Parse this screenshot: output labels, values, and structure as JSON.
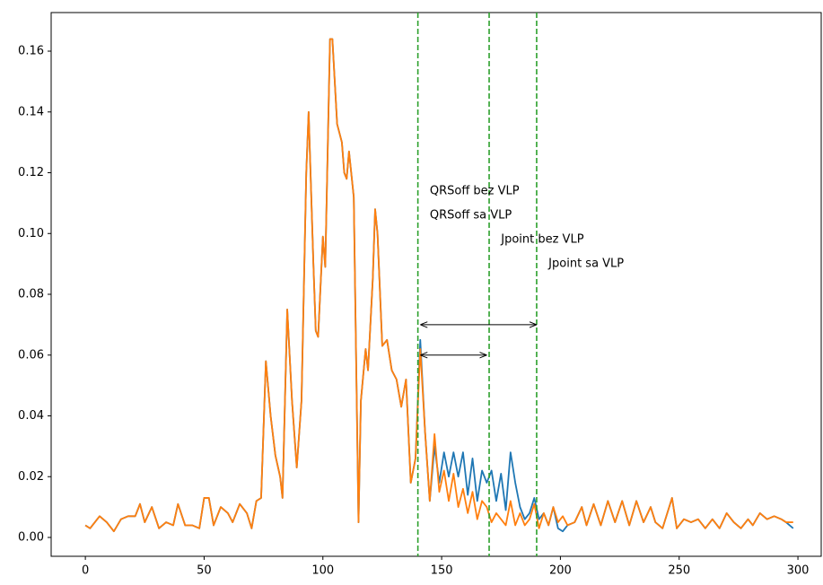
{
  "chart_data": {
    "type": "line",
    "x": [
      0,
      2,
      4,
      6,
      9,
      12,
      15,
      18,
      21,
      23,
      25,
      28,
      31,
      34,
      37,
      39,
      42,
      45,
      48,
      50,
      52,
      54,
      57,
      60,
      62,
      65,
      68,
      70,
      72,
      74,
      76,
      78,
      80,
      82,
      83,
      85,
      87,
      89,
      91,
      93,
      94,
      96,
      97,
      98,
      100,
      101,
      103,
      104,
      106,
      108,
      109,
      110,
      111,
      113,
      115,
      116,
      118,
      119,
      121,
      122,
      123,
      125,
      127,
      129,
      131,
      133,
      135,
      137,
      139,
      141,
      143,
      145,
      147,
      149,
      151,
      153,
      155,
      157,
      159,
      161,
      163,
      165,
      167,
      169,
      171,
      173,
      175,
      177,
      179,
      181,
      183,
      185,
      187,
      189,
      191,
      193,
      195,
      197,
      199,
      201,
      203,
      206,
      209,
      211,
      214,
      217,
      220,
      223,
      226,
      229,
      232,
      235,
      238,
      240,
      243,
      245,
      247,
      249,
      252,
      255,
      258,
      261,
      264,
      267,
      270,
      273,
      276,
      279,
      281,
      284,
      287,
      290,
      293,
      295,
      298
    ],
    "series": [
      {
        "name": "bez VLP",
        "color": "#1f77b4",
        "values": [
          0.004,
          0.003,
          0.005,
          0.007,
          0.005,
          0.002,
          0.006,
          0.007,
          0.007,
          0.011,
          0.005,
          0.01,
          0.003,
          0.005,
          0.004,
          0.011,
          0.004,
          0.004,
          0.003,
          0.013,
          0.013,
          0.004,
          0.01,
          0.008,
          0.005,
          0.011,
          0.008,
          0.003,
          0.012,
          0.013,
          0.058,
          0.04,
          0.027,
          0.02,
          0.013,
          0.075,
          0.045,
          0.023,
          0.045,
          0.12,
          0.14,
          0.09,
          0.068,
          0.066,
          0.099,
          0.089,
          0.164,
          0.164,
          0.136,
          0.13,
          0.12,
          0.118,
          0.127,
          0.112,
          0.005,
          0.045,
          0.062,
          0.055,
          0.085,
          0.108,
          0.1,
          0.063,
          0.065,
          0.055,
          0.052,
          0.043,
          0.052,
          0.018,
          0.026,
          0.065,
          0.035,
          0.012,
          0.03,
          0.018,
          0.028,
          0.02,
          0.028,
          0.02,
          0.028,
          0.014,
          0.026,
          0.012,
          0.022,
          0.018,
          0.022,
          0.012,
          0.021,
          0.009,
          0.028,
          0.018,
          0.01,
          0.006,
          0.008,
          0.013,
          0.006,
          0.008,
          0.004,
          0.01,
          0.003,
          0.002,
          0.004,
          0.005,
          0.01,
          0.004,
          0.011,
          0.004,
          0.012,
          0.005,
          0.012,
          0.004,
          0.012,
          0.005,
          0.01,
          0.005,
          0.003,
          0.008,
          0.013,
          0.003,
          0.006,
          0.005,
          0.006,
          0.003,
          0.006,
          0.003,
          0.008,
          0.005,
          0.003,
          0.006,
          0.004,
          0.008,
          0.006,
          0.007,
          0.006,
          0.005,
          0.003
        ]
      },
      {
        "name": "sa VLP",
        "color": "#ff7f0e",
        "values": [
          0.004,
          0.003,
          0.005,
          0.007,
          0.005,
          0.002,
          0.006,
          0.007,
          0.007,
          0.011,
          0.005,
          0.01,
          0.003,
          0.005,
          0.004,
          0.011,
          0.004,
          0.004,
          0.003,
          0.013,
          0.013,
          0.004,
          0.01,
          0.008,
          0.005,
          0.011,
          0.008,
          0.003,
          0.012,
          0.013,
          0.058,
          0.04,
          0.027,
          0.02,
          0.013,
          0.075,
          0.045,
          0.023,
          0.045,
          0.12,
          0.14,
          0.09,
          0.068,
          0.066,
          0.099,
          0.089,
          0.164,
          0.164,
          0.136,
          0.13,
          0.12,
          0.118,
          0.127,
          0.112,
          0.005,
          0.045,
          0.062,
          0.055,
          0.085,
          0.108,
          0.1,
          0.063,
          0.065,
          0.055,
          0.052,
          0.043,
          0.052,
          0.018,
          0.026,
          0.062,
          0.035,
          0.012,
          0.034,
          0.015,
          0.022,
          0.012,
          0.021,
          0.01,
          0.016,
          0.008,
          0.015,
          0.006,
          0.012,
          0.01,
          0.005,
          0.008,
          0.006,
          0.004,
          0.012,
          0.004,
          0.008,
          0.004,
          0.006,
          0.011,
          0.003,
          0.008,
          0.004,
          0.01,
          0.005,
          0.007,
          0.004,
          0.005,
          0.01,
          0.004,
          0.011,
          0.004,
          0.012,
          0.005,
          0.012,
          0.004,
          0.012,
          0.005,
          0.01,
          0.005,
          0.003,
          0.008,
          0.013,
          0.003,
          0.006,
          0.005,
          0.006,
          0.003,
          0.006,
          0.003,
          0.008,
          0.005,
          0.003,
          0.006,
          0.004,
          0.008,
          0.006,
          0.007,
          0.006,
          0.005,
          0.005
        ]
      }
    ],
    "xlim": [
      -14.4,
      309.8
    ],
    "ylim": [
      -0.0062,
      0.1727
    ],
    "xticks": [
      0,
      50,
      100,
      150,
      200,
      250,
      300
    ],
    "yticks": [
      {
        "value": 0,
        "label": "0.00"
      },
      0.02,
      0.04,
      0.06,
      0.08,
      {
        "value": 0.1,
        "label": "0.10"
      },
      0.12,
      0.14,
      0.16
    ],
    "vlines": {
      "color": "#2ca02c",
      "values": [
        140,
        170,
        190
      ]
    },
    "annotations": [
      {
        "text": "QRSoff bez VLP",
        "x": 145,
        "y": 0.114
      },
      {
        "text": "QRSoff sa VLP",
        "x": 145,
        "y": 0.106
      },
      {
        "text": "Jpoint bez VLP",
        "x": 175,
        "y": 0.098
      },
      {
        "text": "Jpoint sa VLP",
        "x": 195,
        "y": 0.09
      }
    ],
    "arrows": [
      {
        "x": [
          141,
          190
        ],
        "y": 0.07
      },
      {
        "x": [
          141,
          169
        ],
        "y": 0.06
      }
    ]
  }
}
